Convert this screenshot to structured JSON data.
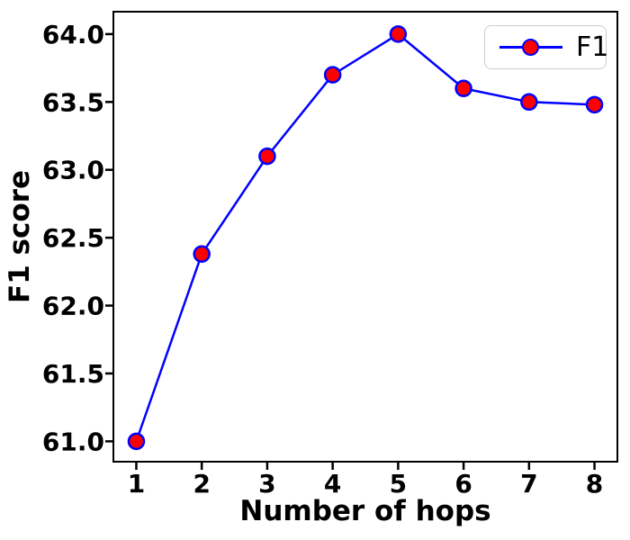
{
  "chart_data": {
    "type": "line",
    "title": "",
    "xlabel": "Number of hops",
    "ylabel": "F1 score",
    "x": [
      1,
      2,
      3,
      4,
      5,
      6,
      7,
      8
    ],
    "series": [
      {
        "name": "F1",
        "values": [
          61.0,
          62.38,
          63.1,
          63.7,
          64.0,
          63.6,
          63.5,
          63.48
        ],
        "line_color": "#0000ff",
        "marker_face": "#ff0000",
        "marker_edge": "#0000ff"
      }
    ],
    "xlim": [
      0.65,
      8.35
    ],
    "ylim": [
      60.85,
      64.165
    ],
    "xticks": [
      1,
      2,
      3,
      4,
      5,
      6,
      7,
      8
    ],
    "xtick_labels": [
      "1",
      "2",
      "3",
      "4",
      "5",
      "6",
      "7",
      "8"
    ],
    "yticks": [
      61.0,
      61.5,
      62.0,
      62.5,
      63.0,
      63.5,
      64.0
    ],
    "ytick_labels": [
      "61.0",
      "61.5",
      "62.0",
      "62.5",
      "63.0",
      "63.5",
      "64.0"
    ],
    "grid": false,
    "legend": {
      "position": "upper right",
      "entries": [
        "F1"
      ]
    },
    "colors": {
      "spine": "#000000",
      "tick": "#000000",
      "text": "#000000",
      "background": "#ffffff",
      "legend_border": "#cccccc"
    }
  }
}
